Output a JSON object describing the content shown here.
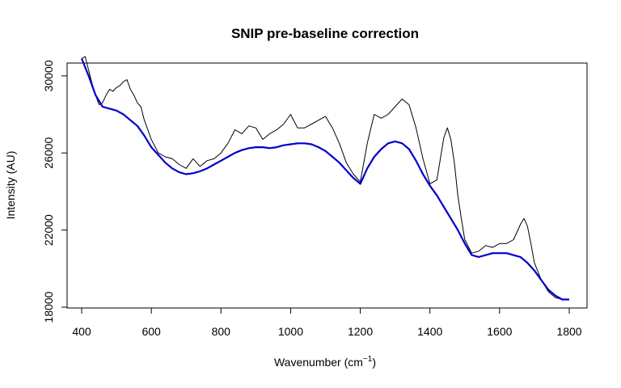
{
  "chart_data": {
    "type": "line",
    "title": "SNIP pre-baseline correction",
    "xlabel": "Wavenumber (cm",
    "xlabel_sup": "−1",
    "xlabel_end": ")",
    "ylabel": "Intensity (AU)",
    "xlim": [
      400,
      1800
    ],
    "ylim": [
      18000,
      31000
    ],
    "x_ticks": [
      400,
      600,
      800,
      1000,
      1200,
      1400,
      1600,
      1800
    ],
    "y_ticks": [
      18000,
      22000,
      26000,
      30000
    ],
    "grid": false,
    "series": [
      {
        "color": "#000000",
        "x": [
          400,
          410,
          420,
          430,
          440,
          450,
          460,
          470,
          480,
          490,
          500,
          510,
          520,
          530,
          540,
          550,
          560,
          570,
          580,
          590,
          600,
          620,
          640,
          660,
          680,
          700,
          720,
          740,
          760,
          780,
          800,
          820,
          840,
          860,
          880,
          900,
          920,
          940,
          960,
          980,
          1000,
          1020,
          1040,
          1060,
          1080,
          1100,
          1120,
          1140,
          1160,
          1180,
          1200,
          1220,
          1240,
          1260,
          1280,
          1300,
          1320,
          1340,
          1360,
          1380,
          1400,
          1420,
          1440,
          1450,
          1460,
          1470,
          1480,
          1490,
          1500,
          1520,
          1540,
          1560,
          1580,
          1600,
          1620,
          1640,
          1660,
          1670,
          1680,
          1690,
          1700,
          1720,
          1740,
          1760,
          1780,
          1800
        ],
        "y": [
          30900,
          31000,
          30300,
          29600,
          29000,
          28500,
          28600,
          29000,
          29300,
          29200,
          29400,
          29500,
          29700,
          29800,
          29300,
          29000,
          28600,
          28400,
          27700,
          27200,
          26700,
          26000,
          25800,
          25700,
          25400,
          25200,
          25700,
          25300,
          25600,
          25700,
          26000,
          26500,
          27200,
          27000,
          27400,
          27300,
          26700,
          27000,
          27200,
          27500,
          28000,
          27300,
          27300,
          27500,
          27700,
          27900,
          27300,
          26500,
          25500,
          24900,
          24500,
          26500,
          28000,
          27800,
          28000,
          28400,
          28800,
          28500,
          27300,
          25700,
          24400,
          24600,
          26800,
          27300,
          26700,
          25500,
          23800,
          22600,
          21500,
          20800,
          20900,
          21200,
          21100,
          21300,
          21300,
          21500,
          22300,
          22600,
          22200,
          21300,
          20300,
          19400,
          18800,
          18500,
          18400,
          18400
        ]
      },
      {
        "color": "#0000cc",
        "x": [
          400,
          420,
          440,
          460,
          480,
          500,
          520,
          540,
          560,
          580,
          600,
          620,
          640,
          660,
          680,
          700,
          720,
          740,
          760,
          780,
          800,
          820,
          840,
          860,
          880,
          900,
          920,
          940,
          960,
          980,
          1000,
          1020,
          1040,
          1060,
          1080,
          1100,
          1120,
          1140,
          1160,
          1180,
          1200,
          1220,
          1240,
          1260,
          1280,
          1300,
          1320,
          1340,
          1360,
          1380,
          1400,
          1420,
          1440,
          1460,
          1480,
          1500,
          1520,
          1540,
          1560,
          1580,
          1600,
          1620,
          1640,
          1660,
          1680,
          1700,
          1720,
          1740,
          1760,
          1780,
          1800
        ],
        "y": [
          30900,
          30000,
          29000,
          28400,
          28300,
          28200,
          28000,
          27700,
          27400,
          26900,
          26300,
          25900,
          25500,
          25200,
          25000,
          24900,
          24950,
          25050,
          25200,
          25400,
          25600,
          25800,
          26000,
          26150,
          26250,
          26300,
          26300,
          26250,
          26300,
          26400,
          26450,
          26500,
          26500,
          26450,
          26300,
          26100,
          25800,
          25500,
          25100,
          24700,
          24400,
          25200,
          25800,
          26200,
          26500,
          26600,
          26500,
          26200,
          25600,
          24900,
          24300,
          23800,
          23200,
          22600,
          22000,
          21300,
          20700,
          20600,
          20700,
          20800,
          20800,
          20800,
          20700,
          20600,
          20300,
          19900,
          19400,
          18900,
          18600,
          18400,
          18400
        ]
      }
    ]
  }
}
